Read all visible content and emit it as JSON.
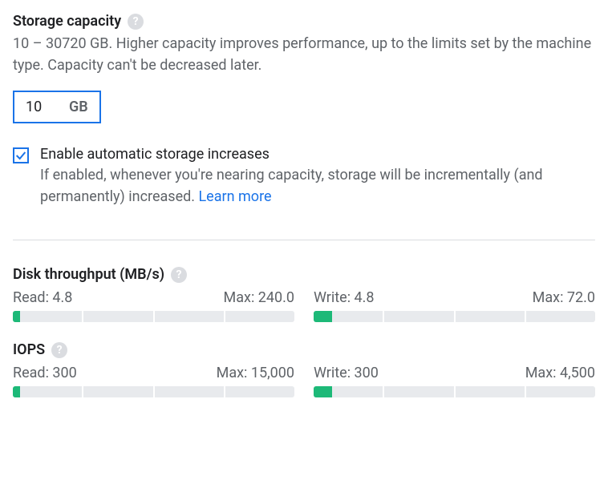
{
  "storage": {
    "title": "Storage capacity",
    "description": "10 – 30720 GB. Higher capacity improves performance, up to the limits set by the machine type. Capacity can't be decreased later.",
    "value": "10",
    "unit": "GB"
  },
  "autoIncrease": {
    "checked": true,
    "label": "Enable automatic storage increases",
    "description": "If enabled, whenever you're nearing capacity, storage will be incrementally (and permanently) increased. ",
    "linkText": "Learn more"
  },
  "throughput": {
    "title": "Disk throughput (MB/s)",
    "read": {
      "label": "Read: 4.8",
      "maxLabel": "Max: 240.0",
      "fillPercent": 10,
      "segments": 4
    },
    "write": {
      "label": "Write: 4.8",
      "maxLabel": "Max: 72.0",
      "fillPercent": 27,
      "segments": 4
    }
  },
  "iops": {
    "title": "IOPS",
    "read": {
      "label": "Read: 300",
      "maxLabel": "Max: 15,000",
      "fillPercent": 10,
      "segments": 4
    },
    "write": {
      "label": "Write: 300",
      "maxLabel": "Max: 4,500",
      "fillPercent": 27,
      "segments": 4
    }
  },
  "colors": {
    "accent": "#1a73e8",
    "progressFill": "#1db978",
    "progressBg": "#e8eaed",
    "textPrimary": "#202124",
    "textSecondary": "#5f6368",
    "helpBg": "#dadce0"
  }
}
